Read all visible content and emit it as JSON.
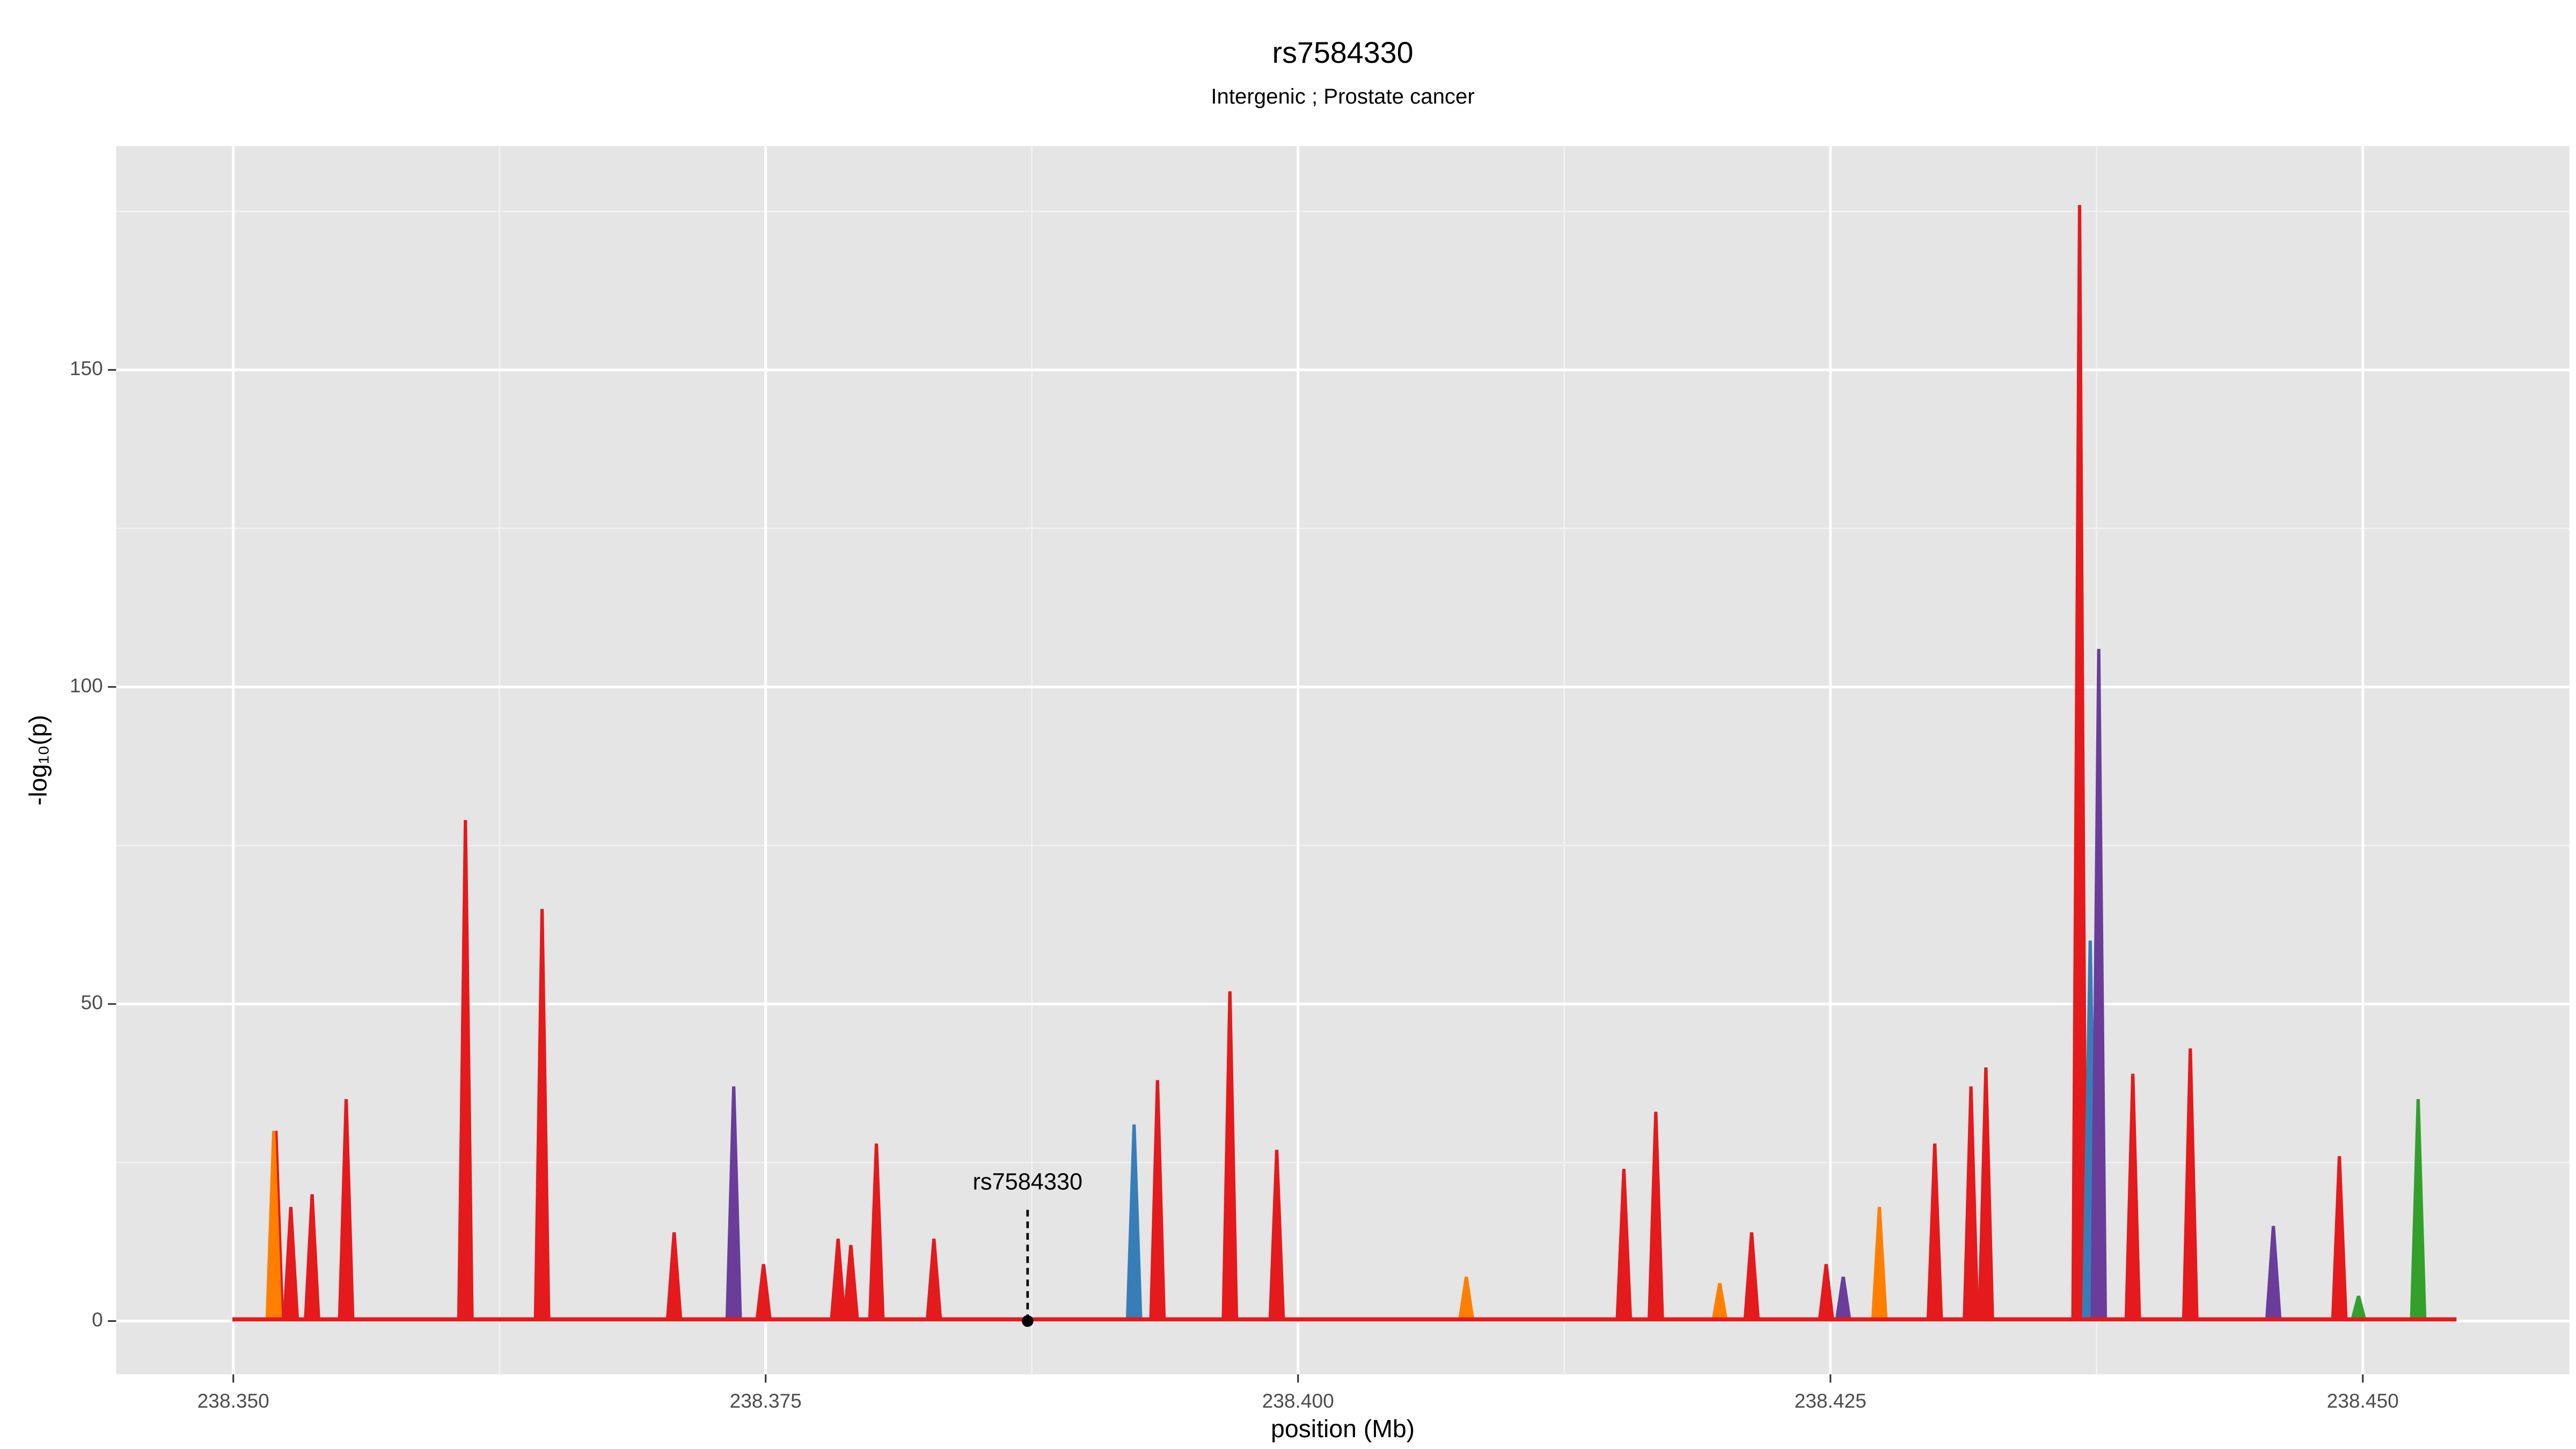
{
  "chart_data": {
    "type": "area",
    "title": "rs7584330",
    "subtitle": "Intergenic ; Prostate cancer",
    "xlabel": "position (Mb)",
    "ylabel": "-log₁₀(p)",
    "xlim": [
      238.3445,
      238.4597
    ],
    "ylim": [
      -8.4,
      185.3
    ],
    "xticks": [
      {
        "value": 238.35,
        "label": "238.350"
      },
      {
        "value": 238.375,
        "label": "238.375"
      },
      {
        "value": 238.4,
        "label": "238.400"
      },
      {
        "value": 238.425,
        "label": "238.425"
      },
      {
        "value": 238.45,
        "label": "238.450"
      }
    ],
    "yticks": [
      0,
      50,
      100,
      150
    ],
    "grid": true,
    "series": [
      {
        "color": "#e41a1c",
        "x": [
          238.352,
          238.3527,
          238.3537,
          238.3553,
          238.3609,
          238.3645,
          238.3707,
          238.3749,
          238.3784,
          238.379,
          238.3802,
          238.3829,
          238.3934,
          238.3968,
          238.399,
          238.4153,
          238.4168,
          238.4213,
          238.4248,
          238.4299,
          238.4316,
          238.4323,
          238.4367,
          238.4392,
          238.4419,
          238.4489
        ],
        "values": [
          30,
          18,
          20,
          35,
          79,
          65,
          14,
          9,
          13,
          12,
          28,
          13,
          38,
          52,
          27,
          24,
          33,
          14,
          9,
          28,
          37,
          40,
          176,
          39,
          43,
          26
        ]
      },
      {
        "color": "#ff7f00",
        "x": [
          238.3519,
          238.4079,
          238.4198,
          238.4273
        ],
        "values": [
          30,
          7,
          6,
          18
        ]
      },
      {
        "color": "#33a02c",
        "x": [
          238.4498,
          238.4526
        ],
        "values": [
          4,
          35
        ]
      },
      {
        "color": "#377eb8",
        "x": [
          238.3923,
          238.4372
        ],
        "values": [
          31,
          60
        ]
      },
      {
        "color": "#6a3d9a",
        "x": [
          238.3735,
          238.4256,
          238.4376,
          238.4458
        ],
        "values": [
          37,
          7,
          106,
          15
        ]
      }
    ],
    "annotation": {
      "text": "rs7584330",
      "x": 238.3873,
      "y": 0
    }
  }
}
